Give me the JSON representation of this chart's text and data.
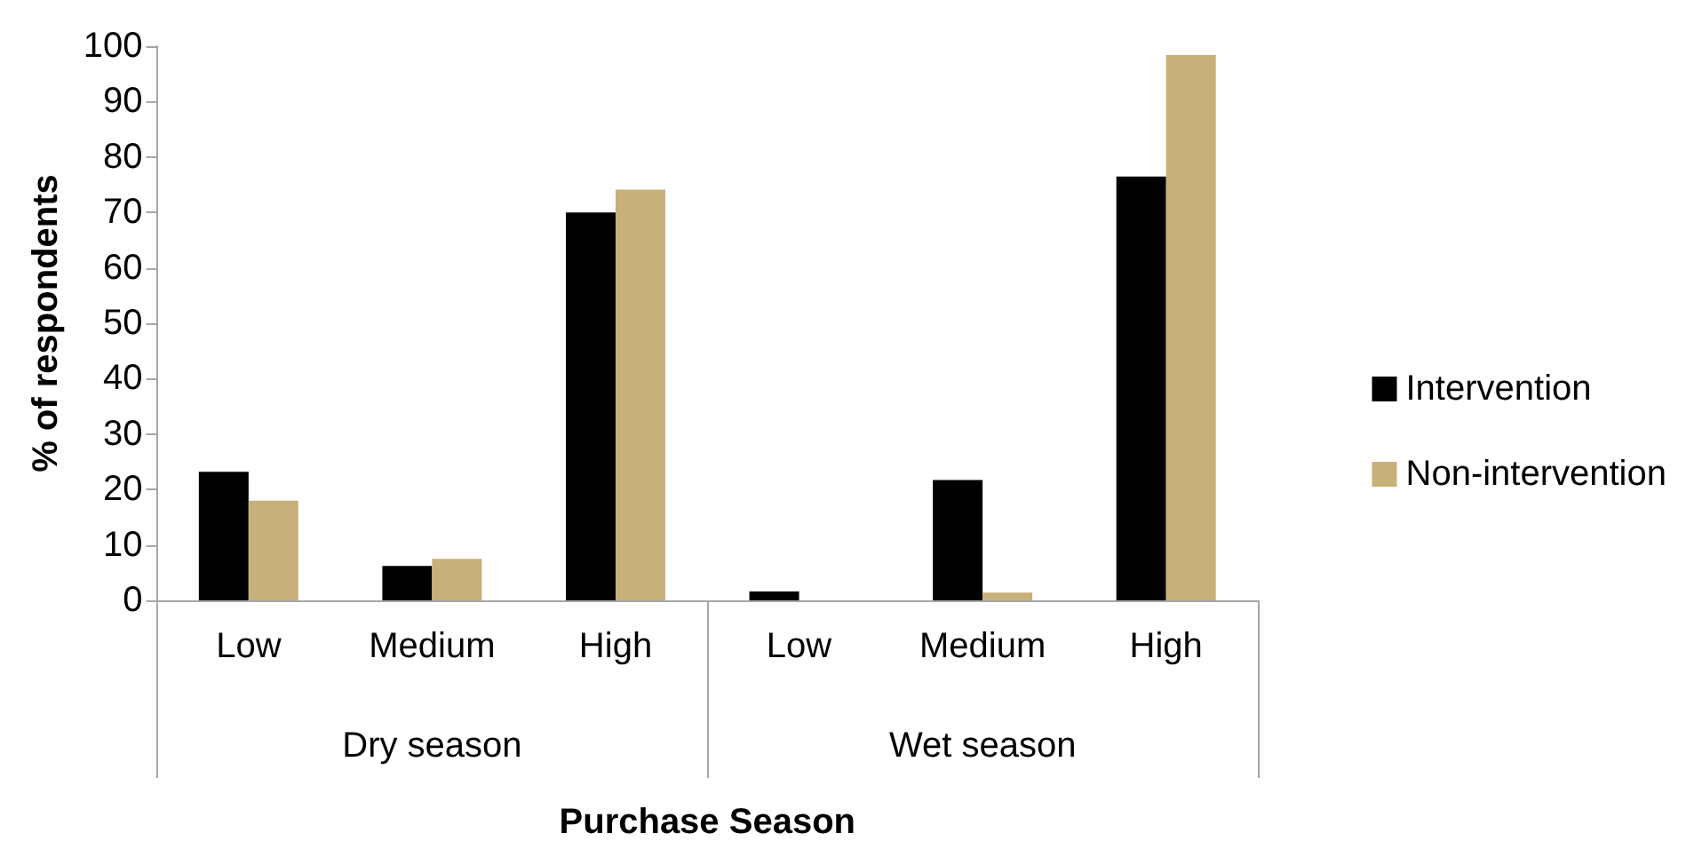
{
  "chart_data": {
    "type": "bar",
    "xlabel": "Purchase Season",
    "ylabel": "% of respondents",
    "categories": [
      "Low",
      "Medium",
      "High",
      "Low",
      "Medium",
      "High"
    ],
    "annotations": [
      "Dry season",
      "Wet season"
    ],
    "series": [
      {
        "name": "Intervention",
        "color": "#000000",
        "values": [
          23.2,
          6.2,
          70.0,
          1.6,
          21.7,
          76.5
        ]
      },
      {
        "name": "Non-intervention",
        "color": "#c8b07a",
        "values": [
          18.0,
          7.5,
          74.1,
          0,
          1.4,
          98.4
        ]
      }
    ],
    "ylim": [
      0,
      100
    ],
    "yticks": [
      0,
      10,
      20,
      30,
      40,
      50,
      60,
      70,
      80,
      90,
      100
    ],
    "grid": false,
    "legend": "right"
  }
}
